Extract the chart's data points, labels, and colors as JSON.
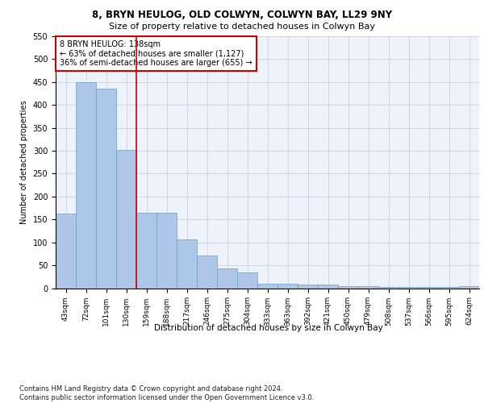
{
  "title1": "8, BRYN HEULOG, OLD COLWYN, COLWYN BAY, LL29 9NY",
  "title2": "Size of property relative to detached houses in Colwyn Bay",
  "xlabel": "Distribution of detached houses by size in Colwyn Bay",
  "ylabel": "Number of detached properties",
  "categories": [
    "43sqm",
    "72sqm",
    "101sqm",
    "130sqm",
    "159sqm",
    "188sqm",
    "217sqm",
    "246sqm",
    "275sqm",
    "304sqm",
    "333sqm",
    "363sqm",
    "392sqm",
    "421sqm",
    "450sqm",
    "479sqm",
    "508sqm",
    "537sqm",
    "566sqm",
    "595sqm",
    "624sqm"
  ],
  "values": [
    163,
    450,
    435,
    302,
    165,
    165,
    107,
    72,
    44,
    34,
    10,
    10,
    8,
    8,
    5,
    5,
    2,
    2,
    2,
    2,
    4
  ],
  "bar_color": "#aec6e8",
  "bar_edge_color": "#6a9ec9",
  "vline_x": 3.5,
  "vline_color": "#cc0000",
  "annotation_text": "8 BRYN HEULOG: 138sqm\n← 63% of detached houses are smaller (1,127)\n36% of semi-detached houses are larger (655) →",
  "annotation_box_color": "#ffffff",
  "annotation_box_edge": "#cc0000",
  "ylim": [
    0,
    550
  ],
  "yticks": [
    0,
    50,
    100,
    150,
    200,
    250,
    300,
    350,
    400,
    450,
    500,
    550
  ],
  "footer": "Contains HM Land Registry data © Crown copyright and database right 2024.\nContains public sector information licensed under the Open Government Licence v3.0.",
  "bg_color": "#eef2fb",
  "grid_color": "#c8d0e0"
}
